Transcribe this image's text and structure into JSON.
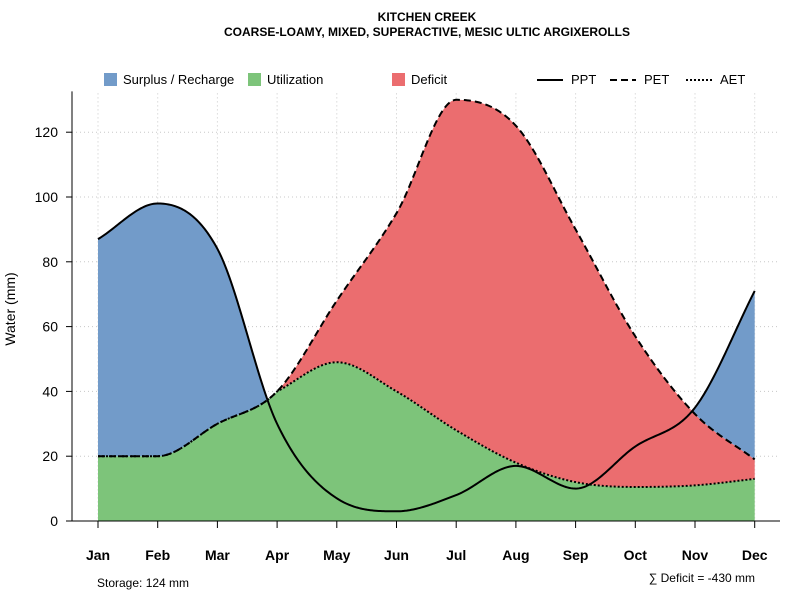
{
  "chart_data": {
    "type": "area",
    "title": "KITCHEN CREEK",
    "subtitle": "COARSE-LOAMY, MIXED, SUPERACTIVE, MESIC ULTIC ARGIXEROLLS",
    "xlabel": "",
    "ylabel": "Water (mm)",
    "ylim": [
      0,
      132
    ],
    "yticks": [
      0,
      20,
      40,
      60,
      80,
      100,
      120
    ],
    "categories": [
      "Jan",
      "Feb",
      "Mar",
      "Apr",
      "May",
      "Jun",
      "Jul",
      "Aug",
      "Sep",
      "Oct",
      "Nov",
      "Dec"
    ],
    "series": [
      {
        "name": "PPT",
        "style": "solid",
        "values": [
          87,
          98,
          84,
          30,
          7,
          3,
          8,
          17,
          10,
          23,
          35,
          71
        ]
      },
      {
        "name": "PET",
        "style": "dashed",
        "values": [
          20,
          20,
          30,
          40,
          68,
          95,
          130,
          122,
          90,
          57,
          33,
          19
        ]
      },
      {
        "name": "AET",
        "style": "dotted",
        "values": [
          20,
          20,
          30,
          40,
          49,
          40,
          28,
          18,
          12,
          10.5,
          11,
          13
        ]
      }
    ],
    "legend": [
      {
        "label": "Surplus / Recharge",
        "kind": "fill",
        "color": "#729BC9"
      },
      {
        "label": "Utilization",
        "kind": "fill",
        "color": "#7DC47A"
      },
      {
        "label": "Deficit",
        "kind": "fill",
        "color": "#EB6D6F"
      },
      {
        "label": "PPT",
        "kind": "line",
        "style": "solid"
      },
      {
        "label": "PET",
        "kind": "line",
        "style": "dashed"
      },
      {
        "label": "AET",
        "kind": "line",
        "style": "dotted"
      }
    ],
    "legend_position": "top",
    "grid": true
  },
  "annotations": {
    "storage": "Storage: 124 mm",
    "deficit": "∑ Deficit = -430 mm"
  },
  "colors": {
    "surplus": "#729BC9",
    "utilization": "#7DC47A",
    "deficit": "#EB6D6F"
  }
}
